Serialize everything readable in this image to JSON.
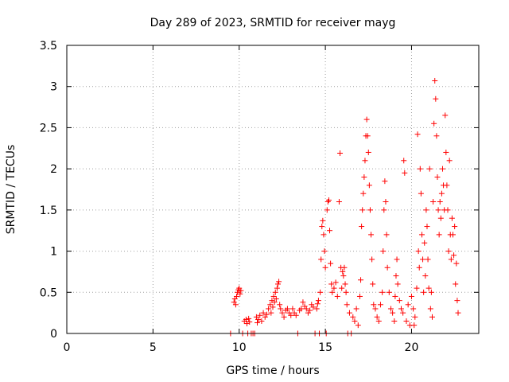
{
  "chart_data": {
    "type": "scatter",
    "title": "Day 289 of 2023, SRMTID for receiver mayg",
    "xlabel": "GPS time / hours",
    "ylabel": "SRMTID / TECUs",
    "xlim": [
      0,
      23.9
    ],
    "ylim": [
      0,
      3.5
    ],
    "xticks": [
      0,
      5,
      10,
      15,
      20
    ],
    "yticks": [
      0,
      0.5,
      1,
      1.5,
      2,
      2.5,
      3,
      3.5
    ],
    "xtick_labels": [
      "0",
      "5",
      "10",
      "15",
      "20"
    ],
    "ytick_labels": [
      "0",
      "0.5",
      "1",
      "1.5",
      "2",
      "2.5",
      "3",
      "3.5"
    ],
    "grid": true,
    "marker": "+",
    "color": "#ff0000",
    "series": [
      {
        "name": "SRMTID",
        "points": [
          [
            9.5,
            0.0
          ],
          [
            9.7,
            0.38
          ],
          [
            9.75,
            0.42
          ],
          [
            9.8,
            0.35
          ],
          [
            9.85,
            0.45
          ],
          [
            9.9,
            0.5
          ],
          [
            9.95,
            0.53
          ],
          [
            10.0,
            0.55
          ],
          [
            10.05,
            0.48
          ],
          [
            10.1,
            0.52
          ],
          [
            10.2,
            0.0
          ],
          [
            10.3,
            0.15
          ],
          [
            10.4,
            0.17
          ],
          [
            10.45,
            0.12
          ],
          [
            10.5,
            0.0
          ],
          [
            10.55,
            0.18
          ],
          [
            10.6,
            0.14
          ],
          [
            10.7,
            0.0
          ],
          [
            10.8,
            0.0
          ],
          [
            10.9,
            0.0
          ],
          [
            11.0,
            0.2
          ],
          [
            11.05,
            0.13
          ],
          [
            11.1,
            0.17
          ],
          [
            11.2,
            0.22
          ],
          [
            11.3,
            0.15
          ],
          [
            11.4,
            0.25
          ],
          [
            11.5,
            0.2
          ],
          [
            11.6,
            0.23
          ],
          [
            11.7,
            0.3
          ],
          [
            11.8,
            0.35
          ],
          [
            11.85,
            0.25
          ],
          [
            11.9,
            0.4
          ],
          [
            11.95,
            0.32
          ],
          [
            12.0,
            0.45
          ],
          [
            12.05,
            0.38
          ],
          [
            12.1,
            0.5
          ],
          [
            12.15,
            0.42
          ],
          [
            12.2,
            0.55
          ],
          [
            12.25,
            0.6
          ],
          [
            12.3,
            0.63
          ],
          [
            12.35,
            0.35
          ],
          [
            12.4,
            0.3
          ],
          [
            12.5,
            0.25
          ],
          [
            12.6,
            0.2
          ],
          [
            12.7,
            0.28
          ],
          [
            12.8,
            0.3
          ],
          [
            12.9,
            0.25
          ],
          [
            13.0,
            0.22
          ],
          [
            13.1,
            0.3
          ],
          [
            13.2,
            0.25
          ],
          [
            13.3,
            0.22
          ],
          [
            13.4,
            0.0
          ],
          [
            13.5,
            0.28
          ],
          [
            13.6,
            0.3
          ],
          [
            13.7,
            0.38
          ],
          [
            13.8,
            0.33
          ],
          [
            13.9,
            0.3
          ],
          [
            14.0,
            0.25
          ],
          [
            14.1,
            0.28
          ],
          [
            14.2,
            0.35
          ],
          [
            14.3,
            0.32
          ],
          [
            14.4,
            0.0
          ],
          [
            14.5,
            0.3
          ],
          [
            14.55,
            0.36
          ],
          [
            14.6,
            0.4
          ],
          [
            14.65,
            0.0
          ],
          [
            14.7,
            0.5
          ],
          [
            14.75,
            0.9
          ],
          [
            14.8,
            1.3
          ],
          [
            14.85,
            1.37
          ],
          [
            14.9,
            1.2
          ],
          [
            14.95,
            1.0
          ],
          [
            15.0,
            0.8
          ],
          [
            15.05,
            0.0
          ],
          [
            15.1,
            1.5
          ],
          [
            15.15,
            1.6
          ],
          [
            15.2,
            1.62
          ],
          [
            15.25,
            1.25
          ],
          [
            15.3,
            0.85
          ],
          [
            15.35,
            0.6
          ],
          [
            15.4,
            0.5
          ],
          [
            15.5,
            0.55
          ],
          [
            15.6,
            0.62
          ],
          [
            15.7,
            0.45
          ],
          [
            15.8,
            1.6
          ],
          [
            15.85,
            2.19
          ],
          [
            15.9,
            0.8
          ],
          [
            15.95,
            0.55
          ],
          [
            16.0,
            0.75
          ],
          [
            16.05,
            0.7
          ],
          [
            16.1,
            0.8
          ],
          [
            16.15,
            0.6
          ],
          [
            16.2,
            0.5
          ],
          [
            16.25,
            0.35
          ],
          [
            16.3,
            0.0
          ],
          [
            16.4,
            0.25
          ],
          [
            16.5,
            0.0
          ],
          [
            16.6,
            0.2
          ],
          [
            16.7,
            0.15
          ],
          [
            16.8,
            0.3
          ],
          [
            16.9,
            0.1
          ],
          [
            17.0,
            0.45
          ],
          [
            17.05,
            0.65
          ],
          [
            17.1,
            1.3
          ],
          [
            17.15,
            1.5
          ],
          [
            17.2,
            1.7
          ],
          [
            17.25,
            1.9
          ],
          [
            17.3,
            2.1
          ],
          [
            17.35,
            2.4
          ],
          [
            17.4,
            2.6
          ],
          [
            17.45,
            2.4
          ],
          [
            17.5,
            2.2
          ],
          [
            17.55,
            1.8
          ],
          [
            17.6,
            1.5
          ],
          [
            17.65,
            1.2
          ],
          [
            17.7,
            0.9
          ],
          [
            17.75,
            0.6
          ],
          [
            17.8,
            0.35
          ],
          [
            17.9,
            0.3
          ],
          [
            18.0,
            0.2
          ],
          [
            18.1,
            0.15
          ],
          [
            18.2,
            0.35
          ],
          [
            18.3,
            0.5
          ],
          [
            18.35,
            1.0
          ],
          [
            18.4,
            1.5
          ],
          [
            18.45,
            1.85
          ],
          [
            18.5,
            1.6
          ],
          [
            18.55,
            1.2
          ],
          [
            18.6,
            0.8
          ],
          [
            18.7,
            0.5
          ],
          [
            18.8,
            0.3
          ],
          [
            18.9,
            0.25
          ],
          [
            19.0,
            0.15
          ],
          [
            19.05,
            0.45
          ],
          [
            19.1,
            0.7
          ],
          [
            19.15,
            0.9
          ],
          [
            19.2,
            0.6
          ],
          [
            19.3,
            0.4
          ],
          [
            19.4,
            0.3
          ],
          [
            19.5,
            0.25
          ],
          [
            19.55,
            2.1
          ],
          [
            19.6,
            1.95
          ],
          [
            19.7,
            0.15
          ],
          [
            19.8,
            0.35
          ],
          [
            19.9,
            0.1
          ],
          [
            20.0,
            0.45
          ],
          [
            20.1,
            0.3
          ],
          [
            20.15,
            0.1
          ],
          [
            20.2,
            0.2
          ],
          [
            20.3,
            0.55
          ],
          [
            20.35,
            2.42
          ],
          [
            20.4,
            1.0
          ],
          [
            20.45,
            0.8
          ],
          [
            20.5,
            2.0
          ],
          [
            20.55,
            1.7
          ],
          [
            20.6,
            1.2
          ],
          [
            20.65,
            0.9
          ],
          [
            20.7,
            0.5
          ],
          [
            20.75,
            1.1
          ],
          [
            20.8,
            0.7
          ],
          [
            20.85,
            1.5
          ],
          [
            20.9,
            1.3
          ],
          [
            20.95,
            0.9
          ],
          [
            21.0,
            0.55
          ],
          [
            21.05,
            2.0
          ],
          [
            21.1,
            0.3
          ],
          [
            21.15,
            0.5
          ],
          [
            21.2,
            0.2
          ],
          [
            21.25,
            1.6
          ],
          [
            21.3,
            2.55
          ],
          [
            21.35,
            3.07
          ],
          [
            21.4,
            2.85
          ],
          [
            21.45,
            2.4
          ],
          [
            21.5,
            1.9
          ],
          [
            21.55,
            1.5
          ],
          [
            21.6,
            1.2
          ],
          [
            21.65,
            1.6
          ],
          [
            21.7,
            1.4
          ],
          [
            21.75,
            1.7
          ],
          [
            21.8,
            2.0
          ],
          [
            21.85,
            1.8
          ],
          [
            21.9,
            1.5
          ],
          [
            21.95,
            2.65
          ],
          [
            22.0,
            2.2
          ],
          [
            22.05,
            1.8
          ],
          [
            22.1,
            1.5
          ],
          [
            22.15,
            1.0
          ],
          [
            22.2,
            2.1
          ],
          [
            22.25,
            1.2
          ],
          [
            22.3,
            0.9
          ],
          [
            22.35,
            1.4
          ],
          [
            22.4,
            1.2
          ],
          [
            22.45,
            0.95
          ],
          [
            22.5,
            1.3
          ],
          [
            22.55,
            0.6
          ],
          [
            22.6,
            0.85
          ],
          [
            22.65,
            0.4
          ],
          [
            22.7,
            0.25
          ]
        ]
      }
    ]
  }
}
